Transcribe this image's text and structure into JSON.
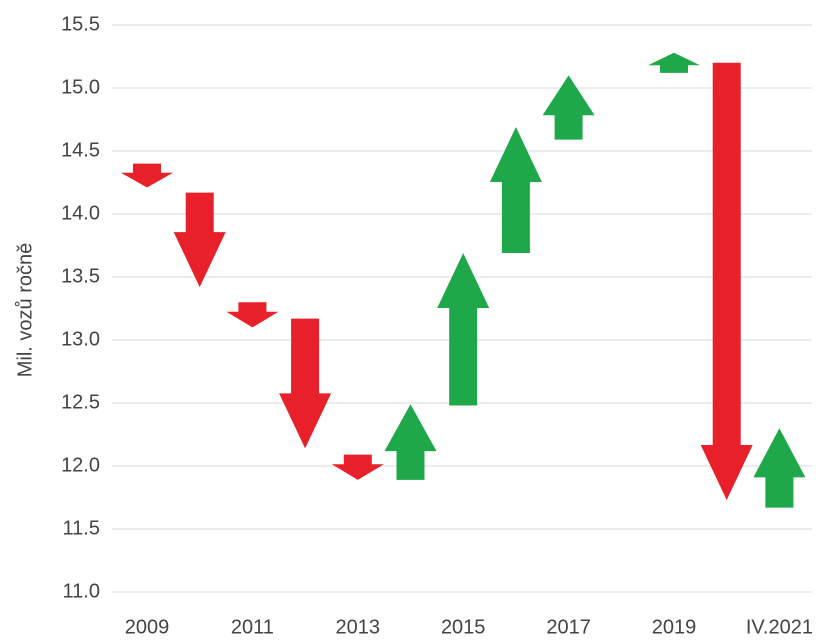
{
  "chart_data": {
    "type": "arrow",
    "y_label": "Mil. vozů ročně",
    "categories": [
      "2009",
      null,
      "2011",
      null,
      "2013",
      null,
      "2015",
      null,
      "2017",
      null,
      "2019",
      null,
      "IV.2021"
    ],
    "start": [
      14.4,
      14.17,
      13.3,
      13.17,
      12.09,
      11.89,
      12.48,
      13.69,
      14.59,
      null,
      15.12,
      15.2,
      11.67
    ],
    "end": [
      14.21,
      13.42,
      13.1,
      12.14,
      11.89,
      12.49,
      13.69,
      14.69,
      15.1,
      null,
      15.28,
      11.73,
      12.3
    ],
    "colors": {
      "up": "#1fa84a",
      "down": "#e8202a"
    },
    "ylim": [
      11.0,
      15.5
    ],
    "yticks": [
      {
        "value": 11,
        "label": "11.0"
      },
      11.5,
      {
        "value": 12,
        "label": "12.0"
      },
      12.5,
      {
        "value": 13,
        "label": "13.0"
      },
      13.5,
      {
        "value": 14,
        "label": "14.0"
      },
      14.5,
      {
        "value": 15,
        "label": "15.0"
      },
      15.5
    ],
    "grid": true
  }
}
